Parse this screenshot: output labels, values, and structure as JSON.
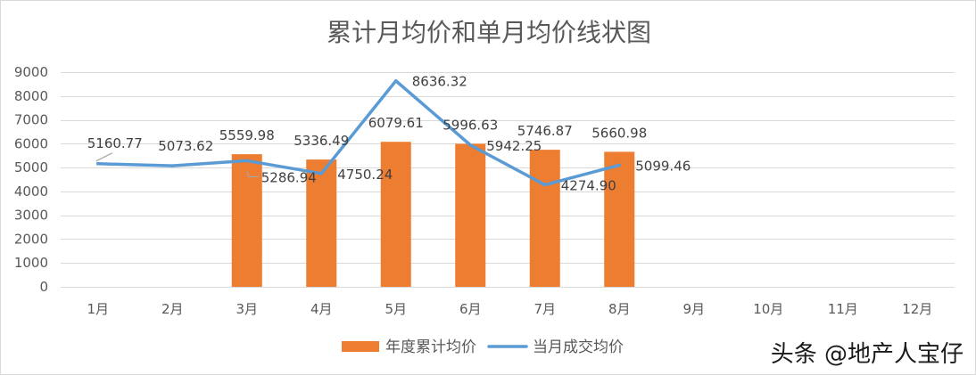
{
  "chart_data": {
    "type": "bar",
    "title": "累计月均价和单月均价线状图",
    "categories": [
      "1月",
      "2月",
      "3月",
      "4月",
      "5月",
      "6月",
      "7月",
      "8月",
      "9月",
      "10月",
      "11月",
      "12月"
    ],
    "series": [
      {
        "name": "年度累计均价",
        "type": "bar",
        "values": [
          null,
          null,
          5559.98,
          5336.49,
          6079.61,
          5996.63,
          5746.87,
          5660.98,
          null,
          null,
          null,
          null
        ]
      },
      {
        "name": "当月成交均价",
        "type": "line",
        "values": [
          5160.77,
          5073.62,
          5286.94,
          4750.24,
          8636.32,
          5942.25,
          4274.9,
          5099.46,
          null,
          null,
          null,
          null
        ]
      }
    ],
    "ylim": [
      0,
      9000
    ],
    "yticks": [
      0,
      1000,
      2000,
      3000,
      4000,
      5000,
      6000,
      7000,
      8000,
      9000
    ],
    "grid": true,
    "legend": "bottom",
    "data_labels": true
  },
  "colors": {
    "bar": "#ed7d31",
    "line": "#5b9bd5",
    "grid": "#d9d9d9"
  },
  "watermark": "头条 @地产人宝仔"
}
